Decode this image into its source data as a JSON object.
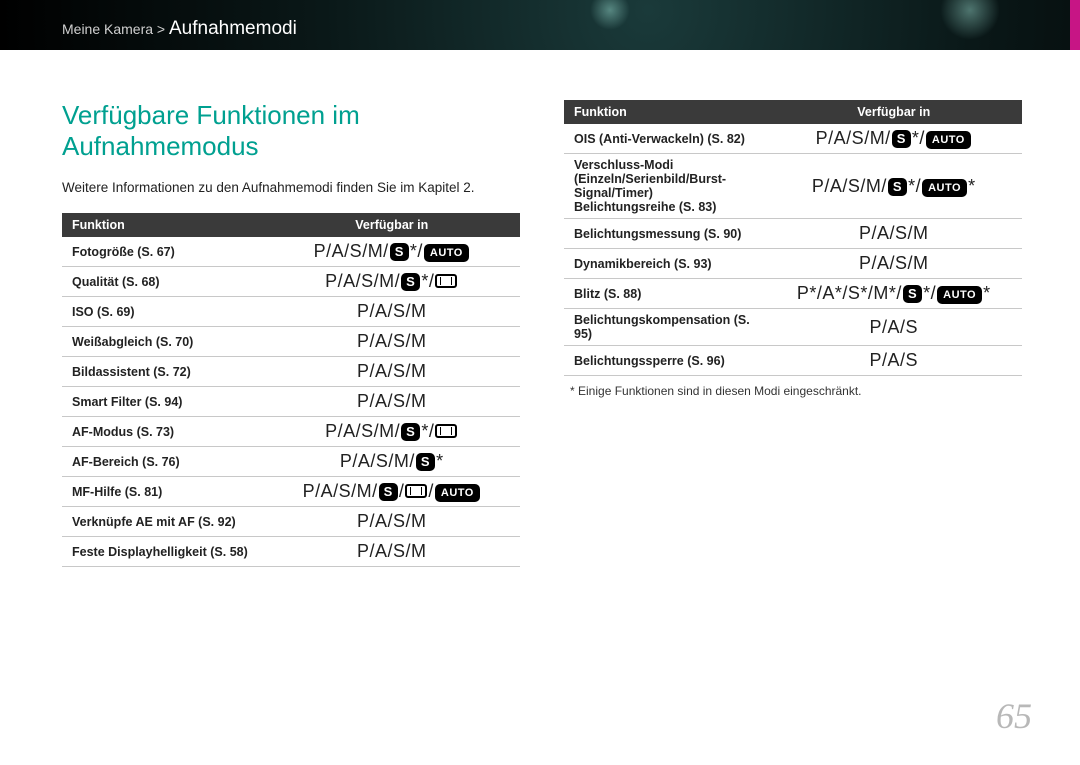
{
  "breadcrumb": {
    "parent": "Meine Kamera >",
    "current": "Aufnahmemodi"
  },
  "title": "Verfügbare Funktionen im Aufnahmemodus",
  "intro": "Weitere Informationen zu den Aufnahmemodi finden Sie im Kapitel 2.",
  "th_func": "Funktion",
  "th_avail": "Verfügbar in",
  "left_rows": [
    {
      "fn": "Fotogröße (S. 67)",
      "av": "P/A/S/M/[S]*/[AUTO]"
    },
    {
      "fn": "Qualität (S. 68)",
      "av": "P/A/S/M/[S]*/[PANO]"
    },
    {
      "fn": "ISO (S. 69)",
      "av": "P/A/S/M"
    },
    {
      "fn": "Weißabgleich (S. 70)",
      "av": "P/A/S/M"
    },
    {
      "fn": "Bildassistent (S. 72)",
      "av": "P/A/S/M"
    },
    {
      "fn": "Smart Filter (S. 94)",
      "av": "P/A/S/M"
    },
    {
      "fn": "AF-Modus (S. 73)",
      "av": "P/A/S/M/[S]*/[PANO]"
    },
    {
      "fn": "AF-Bereich (S. 76)",
      "av": "P/A/S/M/[S]*"
    },
    {
      "fn": "MF-Hilfe (S. 81)",
      "av": "P/A/S/M/[S]/[PANO]/[AUTO]"
    },
    {
      "fn": "Verknüpfe AE mit AF (S. 92)",
      "av": "P/A/S/M"
    },
    {
      "fn": "Feste Displayhelligkeit (S. 58)",
      "av": "P/A/S/M"
    }
  ],
  "right_rows": [
    {
      "fn": "OIS (Anti-Verwackeln) (S. 82)",
      "av": "P/A/S/M/[S]*/[AUTO]"
    },
    {
      "fn": "Verschluss-Modi (Einzeln/Serienbild/Burst-Signal/Timer) Belichtungsreihe (S. 83)",
      "av": "P/A/S/M/[S]*/[AUTO]*"
    },
    {
      "fn": "Belichtungsmessung (S. 90)",
      "av": "P/A/S/M"
    },
    {
      "fn": "Dynamikbereich (S. 93)",
      "av": "P/A/S/M"
    },
    {
      "fn": "Blitz (S. 88)",
      "av": "P*/A*/S*/M*/[S]*/[AUTO]*"
    },
    {
      "fn": "Belichtungskompensation (S. 95)",
      "av": "P/A/S"
    },
    {
      "fn": "Belichtungssperre (S. 96)",
      "av": "P/A/S"
    }
  ],
  "footnote": "* Einige Funktionen sind in diesen Modi eingeschränkt.",
  "page_num": "65"
}
